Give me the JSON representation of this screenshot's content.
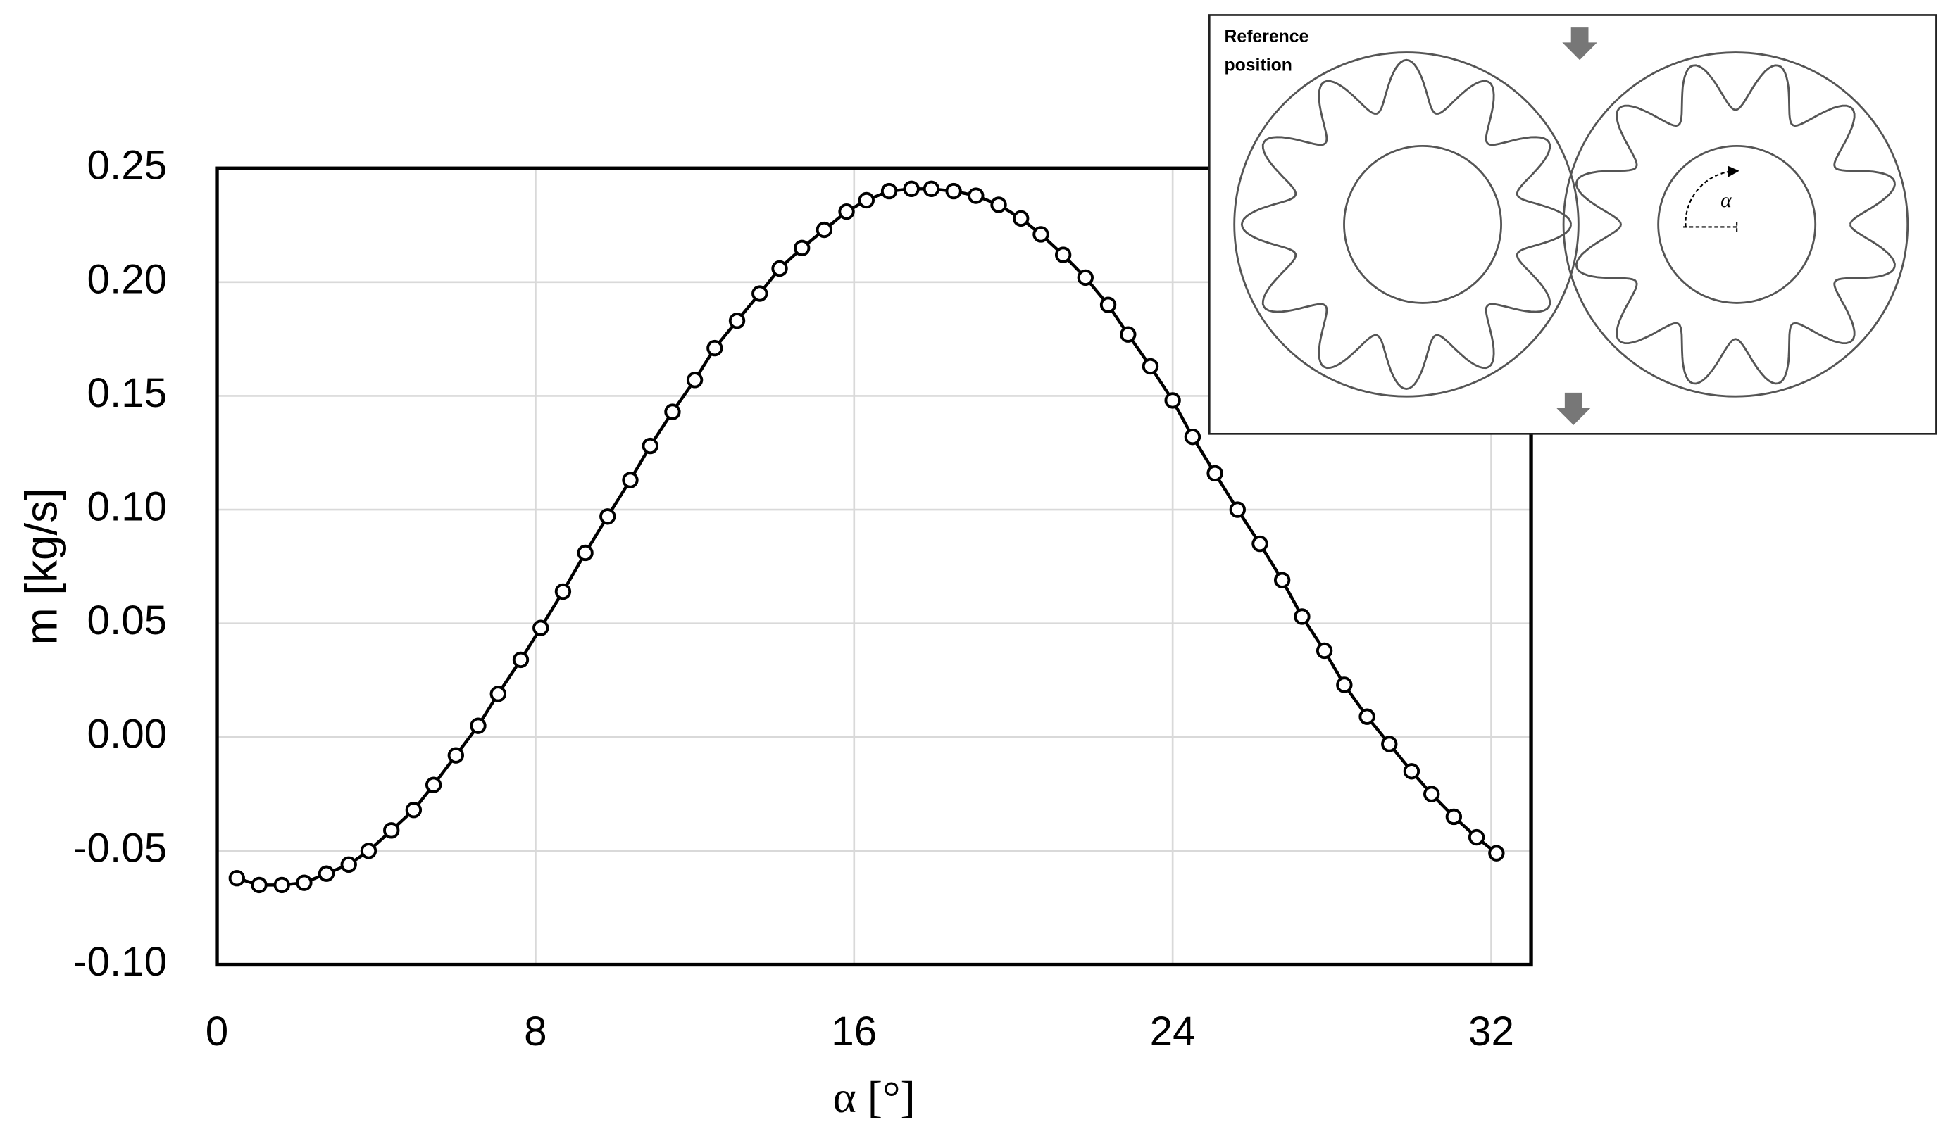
{
  "chart_data": {
    "type": "line",
    "xlabel": "α [°]",
    "ylabel": "m [kg/s]",
    "x": [
      0.5,
      1.06,
      1.63,
      2.19,
      2.75,
      3.31,
      3.81,
      4.38,
      4.94,
      5.44,
      6.0,
      6.56,
      7.06,
      7.63,
      8.13,
      8.69,
      9.25,
      9.81,
      10.38,
      10.88,
      11.44,
      12.0,
      12.5,
      13.06,
      13.63,
      14.13,
      14.69,
      15.25,
      15.81,
      16.31,
      16.88,
      17.44,
      17.94,
      18.5,
      19.06,
      19.63,
      20.19,
      20.69,
      21.25,
      21.81,
      22.38,
      22.88,
      23.44,
      24.0,
      24.5,
      25.06,
      25.63,
      26.19,
      26.75,
      27.25,
      27.81,
      28.31,
      28.88,
      29.44,
      30.0,
      30.5,
      31.06,
      31.63,
      32.13
    ],
    "values": [
      -0.062,
      -0.065,
      -0.065,
      -0.064,
      -0.06,
      -0.056,
      -0.05,
      -0.041,
      -0.032,
      -0.021,
      -0.008,
      0.005,
      0.019,
      0.034,
      0.048,
      0.064,
      0.081,
      0.097,
      0.113,
      0.128,
      0.143,
      0.157,
      0.171,
      0.183,
      0.195,
      0.206,
      0.215,
      0.223,
      0.231,
      0.236,
      0.24,
      0.241,
      0.241,
      0.24,
      0.238,
      0.234,
      0.228,
      0.221,
      0.212,
      0.202,
      0.19,
      0.177,
      0.163,
      0.148,
      0.132,
      0.116,
      0.1,
      0.085,
      0.069,
      0.053,
      0.038,
      0.023,
      0.009,
      -0.003,
      -0.015,
      -0.025,
      -0.035,
      -0.044,
      -0.051
    ],
    "color": "#000000",
    "marker": "circle",
    "xlim": [
      0,
      33
    ],
    "ylim": [
      -0.1,
      0.25
    ],
    "xticks": [
      0,
      8,
      16,
      24,
      32
    ],
    "yticks": [
      {
        "value": -0.1,
        "label": "-0.10"
      },
      -0.05,
      {
        "value": 0,
        "label": "0.00"
      },
      0.05,
      {
        "value": 0.1,
        "label": "0.10"
      },
      0.15,
      {
        "value": 0.2,
        "label": "0.20"
      },
      0.25
    ],
    "grid": true
  },
  "inset": {
    "label_lines": [
      "Reference",
      "position"
    ],
    "angle_label": "α"
  }
}
